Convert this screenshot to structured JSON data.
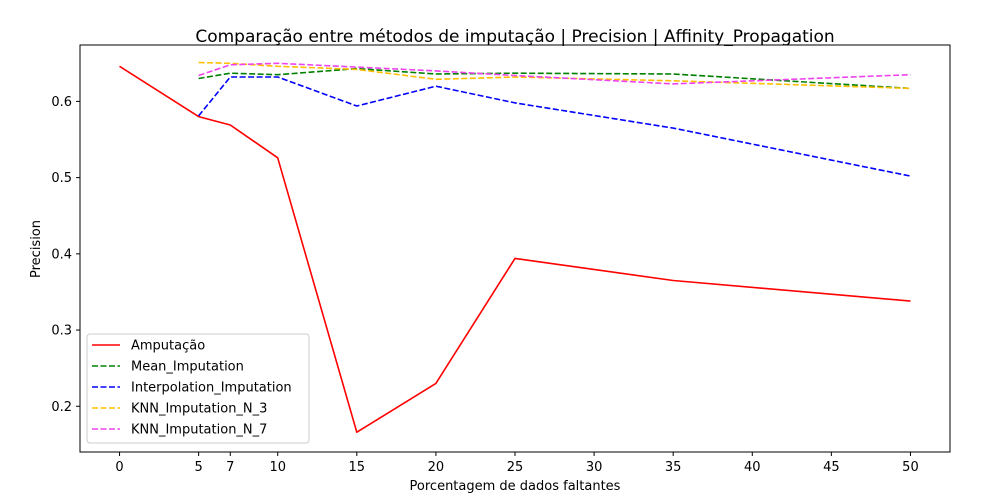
{
  "chart_data": {
    "type": "line",
    "title": "Comparação entre métodos de imputação | Precision | Affinity_Propagation",
    "xlabel": "Porcentagem de dados faltantes",
    "ylabel": "Precision",
    "xticks": [
      0,
      5,
      7,
      10,
      15,
      20,
      25,
      30,
      35,
      40,
      45,
      50
    ],
    "yticks": [
      0.2,
      0.3,
      0.4,
      0.5,
      0.6
    ],
    "xlim": [
      -2.5,
      52.5
    ],
    "ylim": [
      0.14,
      0.674
    ],
    "grid": false,
    "legend_position": "bottom-left",
    "series": [
      {
        "name": "Amputação",
        "color": "#ff0000",
        "style": "solid",
        "x": [
          0,
          5,
          7,
          10,
          15,
          20,
          25,
          35,
          50
        ],
        "y": [
          0.646,
          0.58,
          0.569,
          0.526,
          0.166,
          0.23,
          0.394,
          0.365,
          0.338
        ]
      },
      {
        "name": "Mean_Imputation",
        "color": "#008000",
        "style": "dashed",
        "x": [
          5,
          7,
          10,
          15,
          20,
          25,
          35,
          50
        ],
        "y": [
          0.63,
          0.637,
          0.635,
          0.643,
          0.636,
          0.637,
          0.636,
          0.617
        ]
      },
      {
        "name": "Interpolation_Imputation",
        "color": "#0000ff",
        "style": "dashed",
        "x": [
          5,
          7,
          10,
          15,
          20,
          25,
          35,
          50
        ],
        "y": [
          0.581,
          0.632,
          0.632,
          0.594,
          0.62,
          0.598,
          0.565,
          0.502
        ]
      },
      {
        "name": "KNN_Imputation_N_3",
        "color": "#ffbf00",
        "style": "dashed",
        "x": [
          5,
          7,
          10,
          15,
          20,
          25,
          35,
          50
        ],
        "y": [
          0.651,
          0.65,
          0.646,
          0.642,
          0.629,
          0.632,
          0.627,
          0.617
        ]
      },
      {
        "name": "KNN_Imputation_N_7",
        "color": "#ee44ee",
        "style": "dashed",
        "x": [
          5,
          7,
          10,
          15,
          20,
          25,
          35,
          50
        ],
        "y": [
          0.634,
          0.648,
          0.65,
          0.645,
          0.64,
          0.634,
          0.623,
          0.635
        ]
      }
    ]
  }
}
